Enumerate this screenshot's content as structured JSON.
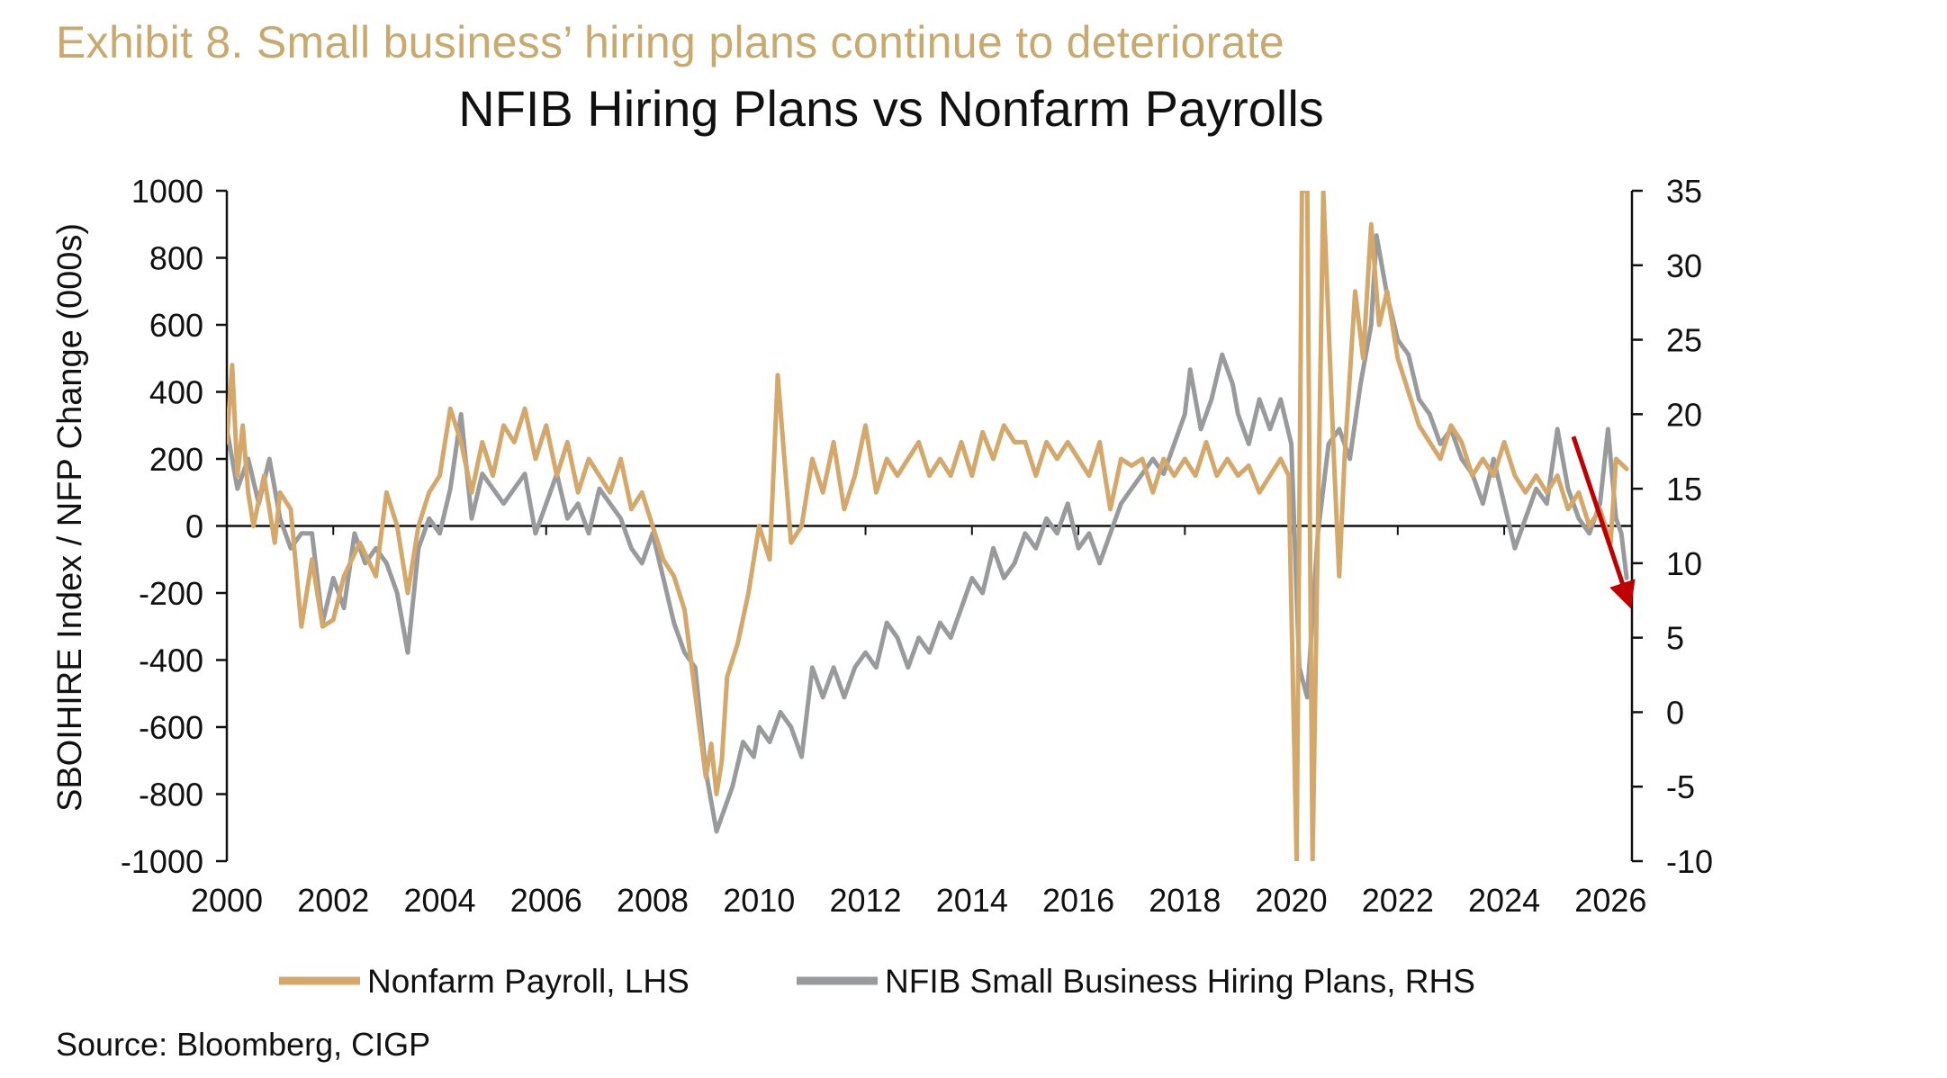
{
  "exhibit_title": "Exhibit 8. Small business’ hiring plans continue to deteriorate",
  "source": "Source: Bloomberg, CIGP",
  "colors": {
    "payroll": "#D4A76A",
    "nfib": "#999A9C",
    "arrow": "#C00000",
    "title_gold": "#C9A96E"
  },
  "chart_data": {
    "type": "line",
    "title": "NFIB Hiring Plans vs Nonfarm Payrolls",
    "ylabel": "SBOIHIRE Index / NFP Change (000s)",
    "ylim_left": [
      -1000,
      1000
    ],
    "ylim_right": [
      -10,
      35
    ],
    "xlim": [
      2000,
      2026.4
    ],
    "y_ticks_left": [
      "1000",
      "800",
      "600",
      "400",
      "200",
      "0",
      "-200",
      "-400",
      "-600",
      "-800",
      "-1000"
    ],
    "y_ticks_right": [
      "35",
      "30",
      "25",
      "20",
      "15",
      "10",
      "5",
      "0",
      "-5",
      "-10"
    ],
    "x_ticks": [
      "2000",
      "2002",
      "2004",
      "2006",
      "2008",
      "2010",
      "2012",
      "2014",
      "2016",
      "2018",
      "2020",
      "2022",
      "2024",
      "2026"
    ],
    "legend": [
      "Nonfarm Payroll, LHS",
      "NFIB Small Business Hiring Plans, RHS"
    ],
    "annotation": "downward red arrow from 2025 to 2026.3 highlighting recent decline",
    "series": [
      {
        "name": "Nonfarm Payroll, LHS",
        "axis": "left",
        "points": [
          [
            2000.0,
            250
          ],
          [
            2000.1,
            480
          ],
          [
            2000.2,
            150
          ],
          [
            2000.3,
            300
          ],
          [
            2000.4,
            100
          ],
          [
            2000.5,
            0
          ],
          [
            2000.7,
            150
          ],
          [
            2000.9,
            -50
          ],
          [
            2001.0,
            100
          ],
          [
            2001.2,
            50
          ],
          [
            2001.4,
            -300
          ],
          [
            2001.6,
            -100
          ],
          [
            2001.8,
            -300
          ],
          [
            2002.0,
            -280
          ],
          [
            2002.2,
            -150
          ],
          [
            2002.5,
            -50
          ],
          [
            2002.8,
            -150
          ],
          [
            2003.0,
            100
          ],
          [
            2003.2,
            0
          ],
          [
            2003.4,
            -200
          ],
          [
            2003.6,
            0
          ],
          [
            2003.8,
            100
          ],
          [
            2004.0,
            150
          ],
          [
            2004.2,
            350
          ],
          [
            2004.4,
            250
          ],
          [
            2004.6,
            100
          ],
          [
            2004.8,
            250
          ],
          [
            2005.0,
            150
          ],
          [
            2005.2,
            300
          ],
          [
            2005.4,
            250
          ],
          [
            2005.6,
            350
          ],
          [
            2005.8,
            200
          ],
          [
            2006.0,
            300
          ],
          [
            2006.2,
            150
          ],
          [
            2006.4,
            250
          ],
          [
            2006.6,
            100
          ],
          [
            2006.8,
            200
          ],
          [
            2007.0,
            150
          ],
          [
            2007.2,
            100
          ],
          [
            2007.4,
            200
          ],
          [
            2007.6,
            50
          ],
          [
            2007.8,
            100
          ],
          [
            2008.0,
            0
          ],
          [
            2008.2,
            -100
          ],
          [
            2008.4,
            -150
          ],
          [
            2008.6,
            -250
          ],
          [
            2008.8,
            -500
          ],
          [
            2009.0,
            -750
          ],
          [
            2009.1,
            -650
          ],
          [
            2009.2,
            -800
          ],
          [
            2009.3,
            -700
          ],
          [
            2009.4,
            -450
          ],
          [
            2009.6,
            -350
          ],
          [
            2009.8,
            -200
          ],
          [
            2010.0,
            0
          ],
          [
            2010.2,
            -100
          ],
          [
            2010.35,
            450
          ],
          [
            2010.5,
            150
          ],
          [
            2010.6,
            -50
          ],
          [
            2010.8,
            0
          ],
          [
            2011.0,
            200
          ],
          [
            2011.2,
            100
          ],
          [
            2011.4,
            250
          ],
          [
            2011.6,
            50
          ],
          [
            2011.8,
            150
          ],
          [
            2012.0,
            300
          ],
          [
            2012.2,
            100
          ],
          [
            2012.4,
            200
          ],
          [
            2012.6,
            150
          ],
          [
            2012.8,
            200
          ],
          [
            2013.0,
            250
          ],
          [
            2013.2,
            150
          ],
          [
            2013.4,
            200
          ],
          [
            2013.6,
            150
          ],
          [
            2013.8,
            250
          ],
          [
            2014.0,
            150
          ],
          [
            2014.2,
            280
          ],
          [
            2014.4,
            200
          ],
          [
            2014.6,
            300
          ],
          [
            2014.8,
            250
          ],
          [
            2015.0,
            250
          ],
          [
            2015.2,
            150
          ],
          [
            2015.4,
            250
          ],
          [
            2015.6,
            200
          ],
          [
            2015.8,
            250
          ],
          [
            2016.0,
            200
          ],
          [
            2016.2,
            150
          ],
          [
            2016.4,
            250
          ],
          [
            2016.6,
            50
          ],
          [
            2016.8,
            200
          ],
          [
            2017.0,
            180
          ],
          [
            2017.2,
            200
          ],
          [
            2017.4,
            100
          ],
          [
            2017.6,
            200
          ],
          [
            2017.8,
            150
          ],
          [
            2018.0,
            200
          ],
          [
            2018.2,
            150
          ],
          [
            2018.4,
            250
          ],
          [
            2018.6,
            150
          ],
          [
            2018.8,
            200
          ],
          [
            2019.0,
            150
          ],
          [
            2019.2,
            180
          ],
          [
            2019.4,
            100
          ],
          [
            2019.6,
            150
          ],
          [
            2019.8,
            200
          ],
          [
            2019.95,
            150
          ],
          [
            2020.1,
            -1000
          ],
          [
            2020.2,
            1000
          ],
          [
            2020.3,
            1000
          ],
          [
            2020.4,
            -1000
          ],
          [
            2020.6,
            1000
          ],
          [
            2020.8,
            200
          ],
          [
            2020.9,
            -150
          ],
          [
            2021.0,
            200
          ],
          [
            2021.2,
            700
          ],
          [
            2021.35,
            500
          ],
          [
            2021.5,
            900
          ],
          [
            2021.65,
            600
          ],
          [
            2021.8,
            700
          ],
          [
            2022.0,
            500
          ],
          [
            2022.2,
            400
          ],
          [
            2022.4,
            300
          ],
          [
            2022.6,
            250
          ],
          [
            2022.8,
            200
          ],
          [
            2023.0,
            300
          ],
          [
            2023.2,
            250
          ],
          [
            2023.4,
            150
          ],
          [
            2023.6,
            200
          ],
          [
            2023.8,
            150
          ],
          [
            2024.0,
            250
          ],
          [
            2024.2,
            150
          ],
          [
            2024.4,
            100
          ],
          [
            2024.6,
            150
          ],
          [
            2024.8,
            100
          ],
          [
            2025.0,
            150
          ],
          [
            2025.2,
            50
          ],
          [
            2025.4,
            100
          ],
          [
            2025.6,
            0
          ],
          [
            2025.8,
            50
          ],
          [
            2026.0,
            -50
          ],
          [
            2026.1,
            200
          ],
          [
            2026.3,
            170
          ]
        ]
      },
      {
        "name": "NFIB Small Business Hiring Plans, RHS",
        "axis": "right",
        "points": [
          [
            2000.0,
            19
          ],
          [
            2000.2,
            15
          ],
          [
            2000.4,
            17
          ],
          [
            2000.6,
            14
          ],
          [
            2000.8,
            17
          ],
          [
            2001.0,
            13
          ],
          [
            2001.2,
            11
          ],
          [
            2001.4,
            12
          ],
          [
            2001.6,
            12
          ],
          [
            2001.8,
            6
          ],
          [
            2002.0,
            9
          ],
          [
            2002.2,
            7
          ],
          [
            2002.4,
            12
          ],
          [
            2002.6,
            10
          ],
          [
            2002.8,
            11
          ],
          [
            2003.0,
            10
          ],
          [
            2003.2,
            8
          ],
          [
            2003.4,
            4
          ],
          [
            2003.6,
            11
          ],
          [
            2003.8,
            13
          ],
          [
            2004.0,
            12
          ],
          [
            2004.2,
            15
          ],
          [
            2004.4,
            20
          ],
          [
            2004.6,
            13
          ],
          [
            2004.8,
            16
          ],
          [
            2005.0,
            15
          ],
          [
            2005.2,
            14
          ],
          [
            2005.4,
            15
          ],
          [
            2005.6,
            16
          ],
          [
            2005.8,
            12
          ],
          [
            2006.0,
            14
          ],
          [
            2006.2,
            16
          ],
          [
            2006.4,
            13
          ],
          [
            2006.6,
            14
          ],
          [
            2006.8,
            12
          ],
          [
            2007.0,
            15
          ],
          [
            2007.2,
            14
          ],
          [
            2007.4,
            13
          ],
          [
            2007.6,
            11
          ],
          [
            2007.8,
            10
          ],
          [
            2008.0,
            12
          ],
          [
            2008.2,
            9
          ],
          [
            2008.4,
            6
          ],
          [
            2008.6,
            4
          ],
          [
            2008.8,
            3
          ],
          [
            2009.0,
            -4
          ],
          [
            2009.1,
            -6
          ],
          [
            2009.2,
            -8
          ],
          [
            2009.3,
            -7
          ],
          [
            2009.5,
            -5
          ],
          [
            2009.7,
            -2
          ],
          [
            2009.9,
            -3
          ],
          [
            2010.0,
            -1
          ],
          [
            2010.2,
            -2
          ],
          [
            2010.4,
            0
          ],
          [
            2010.6,
            -1
          ],
          [
            2010.8,
            -3
          ],
          [
            2011.0,
            3
          ],
          [
            2011.2,
            1
          ],
          [
            2011.4,
            3
          ],
          [
            2011.6,
            1
          ],
          [
            2011.8,
            3
          ],
          [
            2012.0,
            4
          ],
          [
            2012.2,
            3
          ],
          [
            2012.4,
            6
          ],
          [
            2012.6,
            5
          ],
          [
            2012.8,
            3
          ],
          [
            2013.0,
            5
          ],
          [
            2013.2,
            4
          ],
          [
            2013.4,
            6
          ],
          [
            2013.6,
            5
          ],
          [
            2013.8,
            7
          ],
          [
            2014.0,
            9
          ],
          [
            2014.2,
            8
          ],
          [
            2014.4,
            11
          ],
          [
            2014.6,
            9
          ],
          [
            2014.8,
            10
          ],
          [
            2015.0,
            12
          ],
          [
            2015.2,
            11
          ],
          [
            2015.4,
            13
          ],
          [
            2015.6,
            12
          ],
          [
            2015.8,
            14
          ],
          [
            2016.0,
            11
          ],
          [
            2016.2,
            12
          ],
          [
            2016.4,
            10
          ],
          [
            2016.6,
            12
          ],
          [
            2016.8,
            14
          ],
          [
            2017.0,
            15
          ],
          [
            2017.2,
            16
          ],
          [
            2017.4,
            17
          ],
          [
            2017.6,
            16
          ],
          [
            2017.8,
            18
          ],
          [
            2018.0,
            20
          ],
          [
            2018.1,
            23
          ],
          [
            2018.3,
            19
          ],
          [
            2018.5,
            21
          ],
          [
            2018.7,
            24
          ],
          [
            2018.9,
            22
          ],
          [
            2019.0,
            20
          ],
          [
            2019.2,
            18
          ],
          [
            2019.4,
            21
          ],
          [
            2019.6,
            19
          ],
          [
            2019.8,
            21
          ],
          [
            2020.0,
            18
          ],
          [
            2020.15,
            3
          ],
          [
            2020.3,
            1
          ],
          [
            2020.5,
            12
          ],
          [
            2020.7,
            18
          ],
          [
            2020.9,
            19
          ],
          [
            2021.1,
            17
          ],
          [
            2021.3,
            22
          ],
          [
            2021.5,
            26
          ],
          [
            2021.6,
            32
          ],
          [
            2021.8,
            28
          ],
          [
            2022.0,
            25
          ],
          [
            2022.2,
            24
          ],
          [
            2022.4,
            21
          ],
          [
            2022.6,
            20
          ],
          [
            2022.8,
            18
          ],
          [
            2023.0,
            19
          ],
          [
            2023.2,
            17
          ],
          [
            2023.4,
            16
          ],
          [
            2023.6,
            14
          ],
          [
            2023.8,
            17
          ],
          [
            2024.0,
            14
          ],
          [
            2024.2,
            11
          ],
          [
            2024.4,
            13
          ],
          [
            2024.6,
            15
          ],
          [
            2024.8,
            14
          ],
          [
            2025.0,
            19
          ],
          [
            2025.2,
            15
          ],
          [
            2025.4,
            13
          ],
          [
            2025.6,
            12
          ],
          [
            2025.8,
            14
          ],
          [
            2025.95,
            19
          ],
          [
            2026.1,
            13
          ],
          [
            2026.2,
            12
          ],
          [
            2026.3,
            9
          ]
        ]
      }
    ]
  }
}
